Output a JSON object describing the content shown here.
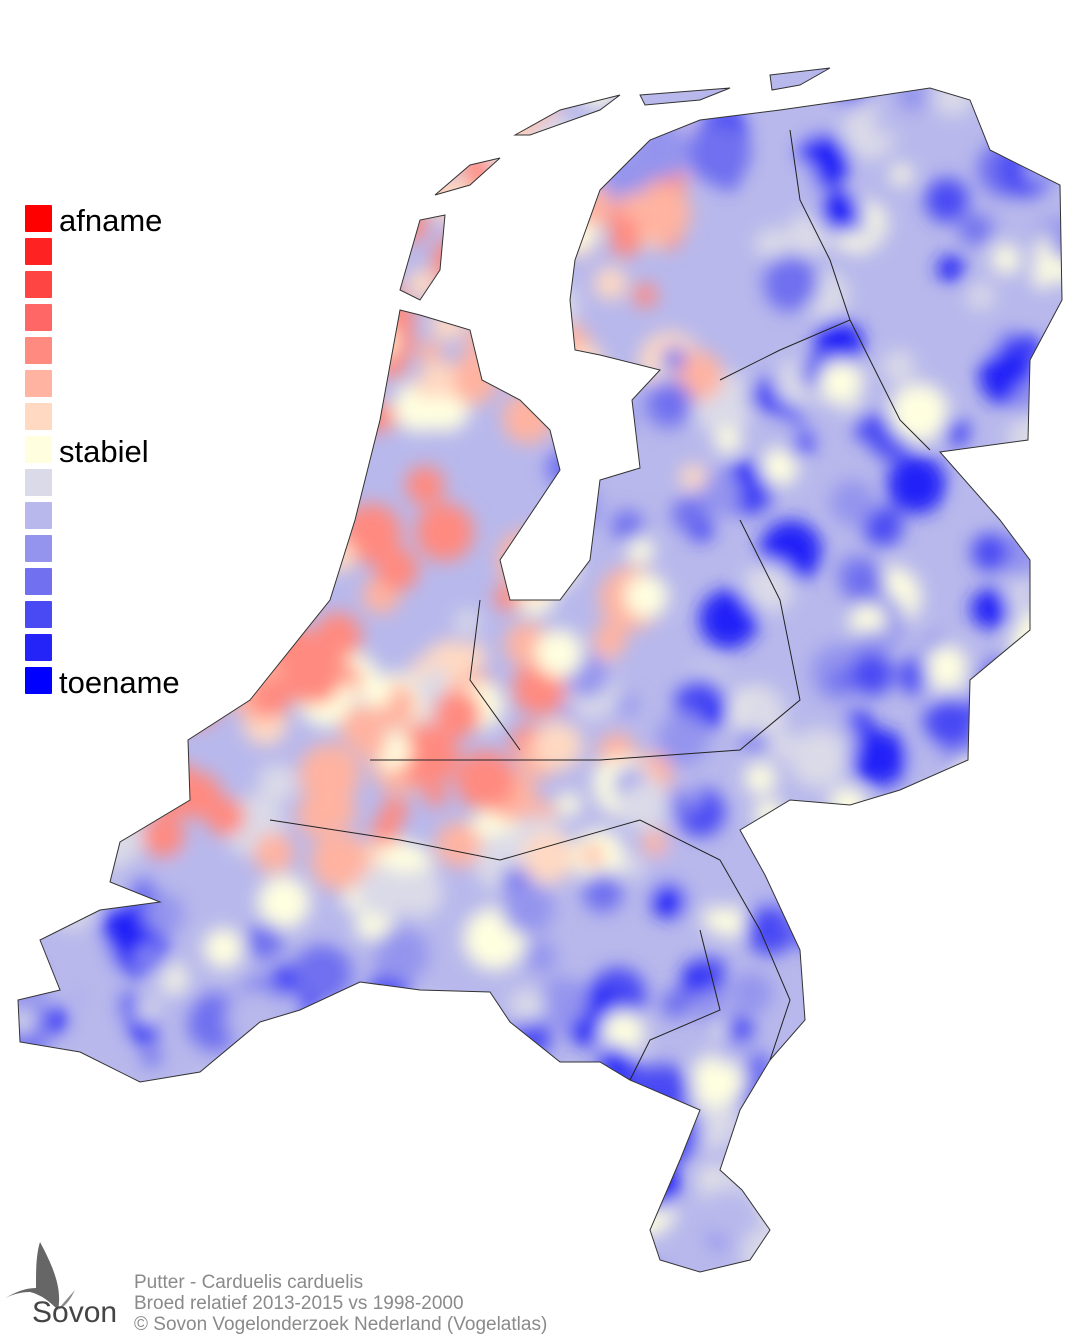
{
  "legend": {
    "colors": [
      "#ff0000",
      "#ff2222",
      "#ff4444",
      "#ff6666",
      "#ff8a80",
      "#ffb3a0",
      "#ffd9c2",
      "#ffffe0",
      "#dadae8",
      "#b8b8ec",
      "#9494ee",
      "#7070f0",
      "#4a4af4",
      "#2424f8",
      "#0000ff"
    ],
    "label_top": "afname",
    "label_mid": "stabiel",
    "label_bottom": "toename"
  },
  "footer": {
    "line1": "Putter - Carduelis carduelis",
    "line2": "Broed relatief 2013-2015 vs 1998-2000",
    "line3": "© Sovon Vogelonderzoek Nederland (Vogelatlas)"
  },
  "logo": {
    "text": "Sovon"
  }
}
